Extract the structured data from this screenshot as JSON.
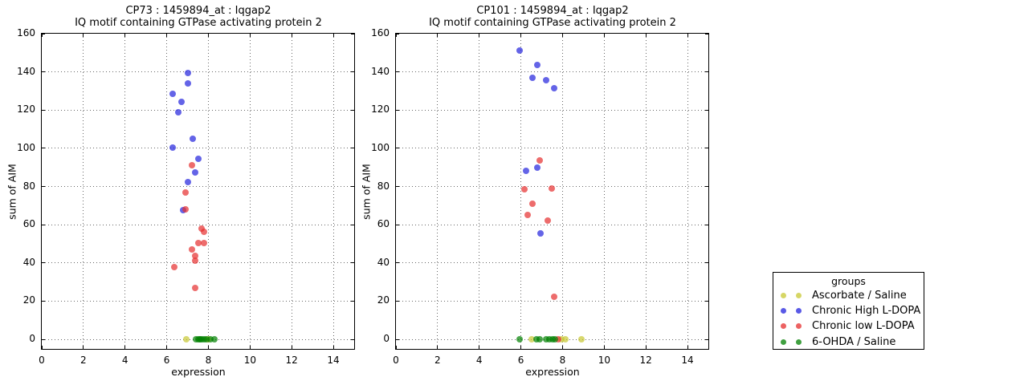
{
  "chart_data": {
    "type": "scatter",
    "figure_bg": "#ffffff",
    "colors": {
      "ascorbate": "#c8c832",
      "chronic_high": "#2222dd",
      "chronic_low": "#e62e2e",
      "ohda": "#008000"
    },
    "legend": {
      "title": "groups",
      "position": "right-bottom",
      "entries": [
        {
          "label": "Ascorbate / Saline",
          "color_key": "ascorbate"
        },
        {
          "label": "Chronic High L-DOPA",
          "color_key": "chronic_high"
        },
        {
          "label": "Chronic low L-DOPA",
          "color_key": "chronic_low"
        },
        {
          "label": "6-OHDA / Saline",
          "color_key": "ohda"
        }
      ]
    },
    "plots": [
      {
        "title": "CP73 : 1459894_at : Iqgap2",
        "subtitle": "IQ motif containing GTPase activating protein 2",
        "xlabel": "expression",
        "ylabel": "sum of AIM",
        "xlim": [
          0,
          15
        ],
        "ylim": [
          -5,
          160
        ],
        "xticks": [
          0,
          2,
          4,
          6,
          8,
          10,
          12,
          14
        ],
        "yticks": [
          0,
          20,
          40,
          60,
          80,
          100,
          120,
          140,
          160
        ],
        "grid": true,
        "series": [
          {
            "name": "Ascorbate / Saline",
            "color_key": "ascorbate",
            "points": [
              [
                6.95,
                0
              ],
              [
                7.98,
                0
              ]
            ]
          },
          {
            "name": "Chronic High L-DOPA",
            "color_key": "chronic_high",
            "points": [
              [
                7.0,
                139.5
              ],
              [
                7.0,
                134
              ],
              [
                6.3,
                128.5
              ],
              [
                6.7,
                124.5
              ],
              [
                6.55,
                119
              ],
              [
                7.25,
                105
              ],
              [
                6.3,
                100.5
              ],
              [
                7.5,
                94.5
              ],
              [
                7.37,
                87.5
              ],
              [
                7.02,
                82.5
              ],
              [
                6.78,
                67.5
              ]
            ]
          },
          {
            "name": "Chronic low L-DOPA",
            "color_key": "chronic_low",
            "points": [
              [
                7.2,
                91
              ],
              [
                6.9,
                77
              ],
              [
                6.9,
                68
              ],
              [
                7.68,
                58
              ],
              [
                7.78,
                56.5
              ],
              [
                7.52,
                50.5
              ],
              [
                7.77,
                50.5
              ],
              [
                7.23,
                47
              ],
              [
                7.38,
                43.5
              ],
              [
                7.37,
                41
              ],
              [
                6.35,
                38
              ],
              [
                7.38,
                27
              ]
            ]
          },
          {
            "name": "6-OHDA / Saline",
            "color_key": "ohda",
            "points": [
              [
                7.4,
                0
              ],
              [
                7.5,
                0
              ],
              [
                7.58,
                0
              ],
              [
                7.68,
                0
              ],
              [
                7.8,
                0
              ],
              [
                7.92,
                0
              ],
              [
                8.1,
                0
              ],
              [
                8.3,
                0
              ]
            ]
          }
        ]
      },
      {
        "title": "CP101 : 1459894_at : Iqgap2",
        "subtitle": "IQ motif containing GTPase activating protein 2",
        "xlabel": "expression",
        "ylabel": "sum of AIM",
        "xlim": [
          0,
          15
        ],
        "ylim": [
          -5,
          160
        ],
        "xticks": [
          0,
          2,
          4,
          6,
          8,
          10,
          12,
          14
        ],
        "yticks": [
          0,
          20,
          40,
          60,
          80,
          100,
          120,
          140,
          160
        ],
        "grid": true,
        "series": [
          {
            "name": "Ascorbate / Saline",
            "color_key": "ascorbate",
            "points": [
              [
                6.53,
                0
              ],
              [
                7.95,
                0
              ],
              [
                8.12,
                0
              ],
              [
                8.9,
                0
              ]
            ]
          },
          {
            "name": "Chronic High L-DOPA",
            "color_key": "chronic_high",
            "points": [
              [
                5.93,
                151
              ],
              [
                6.77,
                143.5
              ],
              [
                6.55,
                137
              ],
              [
                7.2,
                135.5
              ],
              [
                7.58,
                131.5
              ],
              [
                6.78,
                90
              ],
              [
                6.24,
                88
              ],
              [
                6.95,
                55.5
              ]
            ]
          },
          {
            "name": "Chronic low L-DOPA",
            "color_key": "chronic_low",
            "points": [
              [
                6.92,
                93.5
              ],
              [
                7.48,
                79
              ],
              [
                6.18,
                78.5
              ],
              [
                6.56,
                71
              ],
              [
                6.31,
                65
              ],
              [
                7.27,
                62
              ],
              [
                7.59,
                22.5
              ],
              [
                7.78,
                0
              ]
            ]
          },
          {
            "name": "6-OHDA / Saline",
            "color_key": "ohda",
            "points": [
              [
                5.93,
                0
              ],
              [
                6.76,
                0
              ],
              [
                6.9,
                0
              ],
              [
                7.22,
                0
              ],
              [
                7.38,
                0
              ],
              [
                7.52,
                0
              ],
              [
                7.65,
                0
              ]
            ]
          }
        ]
      }
    ]
  }
}
